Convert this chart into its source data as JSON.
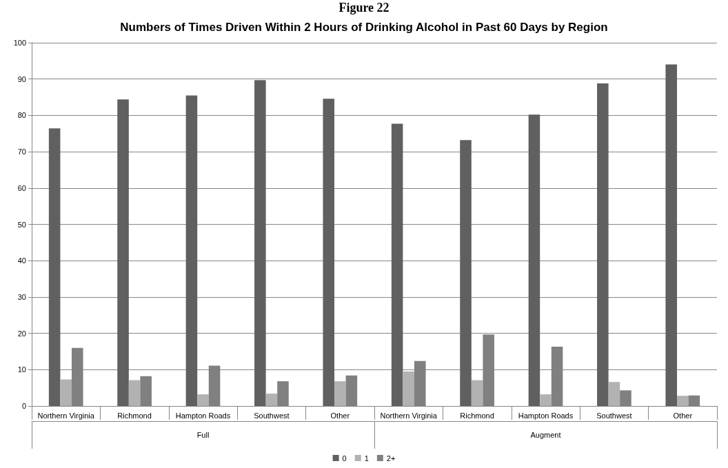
{
  "chart_data": {
    "type": "bar",
    "title": "Numbers of Times Driven Within 2 Hours of Drinking Alcohol in Past 60 Days by Region",
    "annotations": [
      "Figure 22",
      "Full",
      "Augment"
    ],
    "categories": [
      "Northern Virginia",
      "Richmond",
      "Hampton Roads",
      "Southwest",
      "Other",
      "Northern Virginia",
      "Richmond",
      "Hampton Roads",
      "Southwest",
      "Other"
    ],
    "series": [
      {
        "name": "0",
        "color": "#606060",
        "values": [
          76.4,
          84.4,
          85.5,
          89.7,
          84.6,
          77.7,
          73.2,
          80.2,
          88.8,
          94.0
        ]
      },
      {
        "name": "1",
        "color": "#b2b2b2",
        "values": [
          7.3,
          7.1,
          3.2,
          3.4,
          6.8,
          9.5,
          7.1,
          3.2,
          6.6,
          2.8
        ]
      },
      {
        "name": "2+",
        "color": "#808080",
        "values": [
          16.0,
          8.2,
          11.1,
          6.8,
          8.4,
          12.4,
          19.7,
          16.3,
          4.3,
          2.9
        ]
      }
    ],
    "ylim": [
      0,
      100
    ],
    "yticks": [
      0,
      10,
      20,
      30,
      40,
      50,
      60,
      70,
      80,
      90,
      100
    ],
    "grid": "y",
    "legend": "bottom"
  }
}
